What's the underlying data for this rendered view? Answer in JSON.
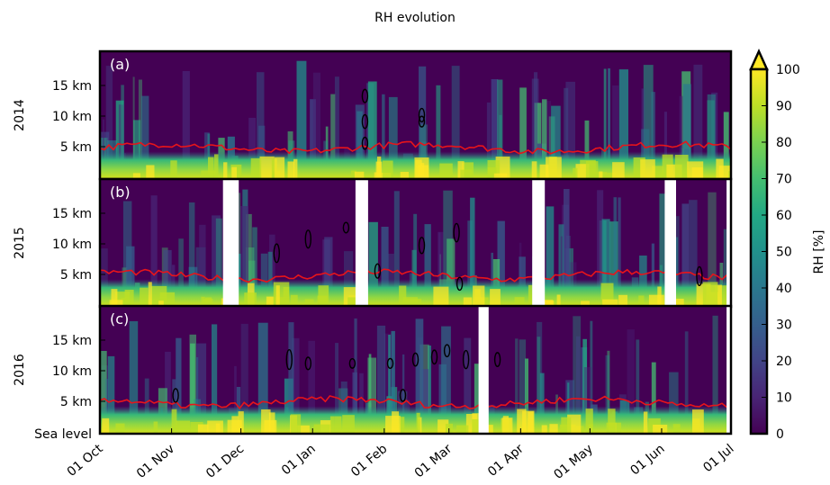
{
  "chart_data": {
    "type": "heatmap",
    "title": "RH evolution",
    "panels": [
      {
        "label": "(a)",
        "year": "2014",
        "gaps": [],
        "contours": [
          [
            0.42,
            0.35
          ],
          [
            0.42,
            0.55
          ],
          [
            0.42,
            0.72
          ],
          [
            0.51,
            0.55
          ],
          [
            0.51,
            0.5
          ]
        ]
      },
      {
        "label": "(b)",
        "year": "2015",
        "gaps": [
          [
            0.195,
            0.22
          ],
          [
            0.405,
            0.425
          ],
          [
            0.685,
            0.705
          ],
          [
            0.895,
            0.913
          ],
          [
            0.993,
            1.0
          ]
        ],
        "contours": [
          [
            0.28,
            0.58
          ],
          [
            0.33,
            0.47
          ],
          [
            0.39,
            0.38
          ],
          [
            0.44,
            0.72
          ],
          [
            0.51,
            0.52
          ],
          [
            0.565,
            0.42
          ],
          [
            0.57,
            0.82
          ],
          [
            0.95,
            0.76
          ]
        ]
      },
      {
        "label": "(c)",
        "year": "2016",
        "gaps": [
          [
            0.6,
            0.616
          ],
          [
            0.993,
            1.0
          ]
        ],
        "contours": [
          [
            0.12,
            0.7
          ],
          [
            0.3,
            0.42
          ],
          [
            0.33,
            0.45
          ],
          [
            0.4,
            0.45
          ],
          [
            0.46,
            0.45
          ],
          [
            0.48,
            0.7
          ],
          [
            0.5,
            0.42
          ],
          [
            0.53,
            0.4
          ],
          [
            0.55,
            0.35
          ],
          [
            0.58,
            0.42
          ],
          [
            0.63,
            0.42
          ]
        ]
      }
    ],
    "y_ticks": [
      "15 km",
      "10 km",
      "5 km"
    ],
    "y_tick_values": [
      15,
      10,
      5
    ],
    "sea_level_label": "Sea level",
    "ylim": [
      0,
      20
    ],
    "x_ticks": [
      "01 Oct",
      "01 Nov",
      "01 Dec",
      "01 Jan",
      "01 Feb",
      "01 Mar",
      "01 Apr",
      "01 May",
      "01 Jun",
      "01 Jul"
    ],
    "x_tick_days": [
      0,
      31,
      61,
      92,
      123,
      151,
      182,
      212,
      243,
      273
    ],
    "xlim_days": [
      0,
      273
    ],
    "red_line_height_km": 5,
    "colorbar": {
      "label": "RH [%]",
      "ticks": [
        0,
        10,
        20,
        30,
        40,
        50,
        60,
        70,
        80,
        90,
        100
      ],
      "range": [
        0,
        100
      ],
      "extend": "max",
      "colormap": "viridis"
    },
    "colors": {
      "background": "#440154",
      "red_line": "#e8141a",
      "contour": "#000000",
      "gap": "#ffffff"
    }
  }
}
